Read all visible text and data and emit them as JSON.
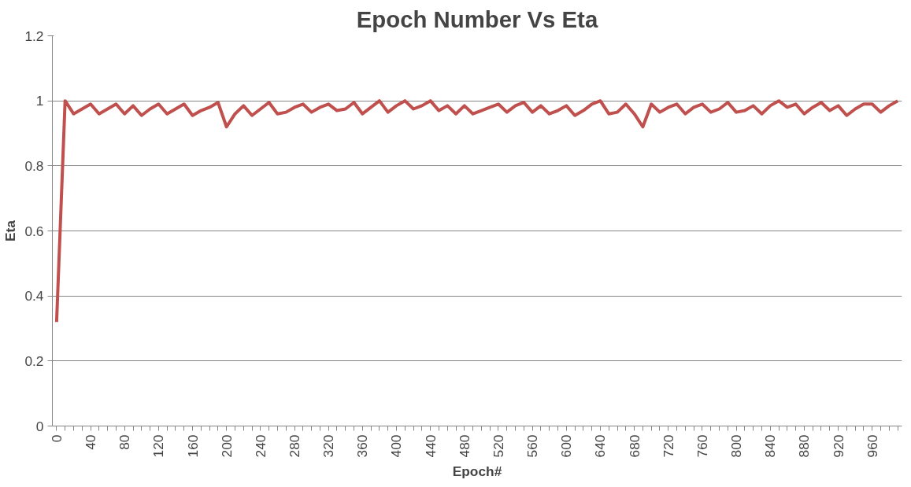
{
  "chart_data": {
    "type": "line",
    "title": "Epoch Number Vs Eta",
    "xlabel": "Epoch#",
    "ylabel": "Eta",
    "categories": [
      "0",
      null,
      null,
      null,
      "40",
      null,
      null,
      null,
      "80",
      null,
      null,
      null,
      "120",
      null,
      null,
      null,
      "160",
      null,
      null,
      null,
      "200",
      null,
      null,
      null,
      "240",
      null,
      null,
      null,
      "280",
      null,
      null,
      null,
      "320",
      null,
      null,
      null,
      "360",
      null,
      null,
      null,
      "400",
      null,
      null,
      null,
      "440",
      null,
      null,
      null,
      "480",
      null,
      null,
      null,
      "520",
      null,
      null,
      null,
      "560",
      null,
      null,
      null,
      "600",
      null,
      null,
      null,
      "640",
      null,
      null,
      null,
      "680",
      null,
      null,
      null,
      "720",
      null,
      null,
      null,
      "760",
      null,
      null,
      null,
      "800",
      null,
      null,
      null,
      "840",
      null,
      null,
      null,
      "880",
      null,
      null,
      null,
      "920",
      null,
      null,
      null,
      "960",
      null,
      null,
      null
    ],
    "series": [
      {
        "color": "#c0504d",
        "values": [
          0.32,
          1.0,
          0.96,
          0.975,
          0.99,
          0.96,
          0.975,
          0.99,
          0.96,
          0.985,
          0.955,
          0.975,
          0.99,
          0.96,
          0.975,
          0.99,
          0.955,
          0.97,
          0.98,
          0.995,
          0.92,
          0.96,
          0.985,
          0.955,
          0.975,
          0.995,
          0.96,
          0.965,
          0.98,
          0.99,
          0.965,
          0.98,
          0.99,
          0.97,
          0.975,
          0.995,
          0.96,
          0.98,
          1.0,
          0.965,
          0.985,
          1.0,
          0.975,
          0.985,
          1.0,
          0.97,
          0.985,
          0.96,
          0.985,
          0.96,
          0.97,
          0.98,
          0.99,
          0.965,
          0.985,
          0.995,
          0.965,
          0.985,
          0.96,
          0.97,
          0.985,
          0.955,
          0.97,
          0.99,
          1.0,
          0.96,
          0.965,
          0.99,
          0.96,
          0.92,
          0.99,
          0.965,
          0.98,
          0.99,
          0.96,
          0.98,
          0.99,
          0.965,
          0.975,
          0.995,
          0.965,
          0.97,
          0.985,
          0.96,
          0.985,
          1.0,
          0.98,
          0.99,
          0.96,
          0.98,
          0.995,
          0.97,
          0.985,
          0.955,
          0.975,
          0.99,
          0.99,
          0.965,
          0.985,
          1.0
        ]
      }
    ],
    "ylim": [
      0,
      1.2
    ],
    "yticks": [
      0,
      0.2,
      0.4,
      0.6,
      0.8,
      1,
      1.2
    ],
    "grid": "y",
    "marker": "none",
    "line_style": "solid"
  }
}
